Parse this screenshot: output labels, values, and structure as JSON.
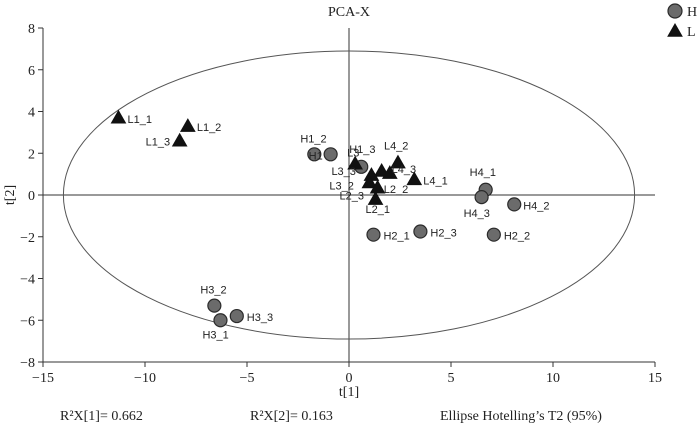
{
  "chart_data": {
    "type": "scatter",
    "title": "PCA-X",
    "xlabel": "t[1]",
    "ylabel": "t[2]",
    "xlim": [
      -15,
      15
    ],
    "ylim": [
      -8,
      8
    ],
    "xticks": [
      -15,
      -10,
      -5,
      0,
      5,
      10,
      15
    ],
    "yticks": [
      -8,
      -6,
      -4,
      -2,
      0,
      2,
      4,
      6,
      8
    ],
    "grid": false,
    "legend": "top-right",
    "ellipse": {
      "cx": 0,
      "cy": 0,
      "rx": 14.0,
      "ry": 6.9,
      "label": "Ellipse Hotelling’s T2 (95%)"
    },
    "series": [
      {
        "name": "H",
        "marker": "circle",
        "color": "#6b6b6b",
        "points": [
          {
            "label": "H1_2",
            "x": -1.7,
            "y": 1.95
          },
          {
            "label": "H1",
            "x": -0.9,
            "y": 1.95
          },
          {
            "label": "H1_3",
            "x": 0.6,
            "y": 1.35
          },
          {
            "label": "H2_1",
            "x": 1.2,
            "y": -1.9
          },
          {
            "label": "H2_3",
            "x": 3.5,
            "y": -1.75
          },
          {
            "label": "H2_2",
            "x": 7.1,
            "y": -1.9
          },
          {
            "label": "H4_1",
            "x": 6.7,
            "y": 0.25
          },
          {
            "label": "H4_3",
            "x": 6.5,
            "y": -0.1
          },
          {
            "label": "H4_2",
            "x": 8.1,
            "y": -0.45
          },
          {
            "label": "H3_2",
            "x": -6.6,
            "y": -5.3
          },
          {
            "label": "H3_3",
            "x": -5.5,
            "y": -5.8
          },
          {
            "label": "H3_1",
            "x": -6.3,
            "y": -6.0
          }
        ]
      },
      {
        "name": "L",
        "marker": "triangle",
        "color": "#111111",
        "points": [
          {
            "label": "L1_1",
            "x": -11.3,
            "y": 3.7
          },
          {
            "label": "L1_2",
            "x": -7.9,
            "y": 3.3
          },
          {
            "label": "L1_3",
            "x": -8.3,
            "y": 2.6
          },
          {
            "label": "L3",
            "x": 0.3,
            "y": 1.5
          },
          {
            "label": "L3_3",
            "x": 1.1,
            "y": 0.95
          },
          {
            "label": "L3_2",
            "x": 1.0,
            "y": 0.6
          },
          {
            "label": "L2_3",
            "x": 1.4,
            "y": 0.35
          },
          {
            "label": "L2_1",
            "x": 1.3,
            "y": -0.2
          },
          {
            "label": "L4_3",
            "x": 1.6,
            "y": 1.15
          },
          {
            "label": "L4_2",
            "x": 2.4,
            "y": 1.55
          },
          {
            "label": "L2_2",
            "x": 2.0,
            "y": 1.05
          },
          {
            "label": "L4_1",
            "x": 3.2,
            "y": 0.75
          }
        ]
      }
    ],
    "footer": {
      "r2x1": "R²X[1]= 0.662",
      "r2x2": "R²X[2]= 0.163",
      "ellipse_note": "Ellipse Hotelling’s T2 (95%)"
    }
  }
}
